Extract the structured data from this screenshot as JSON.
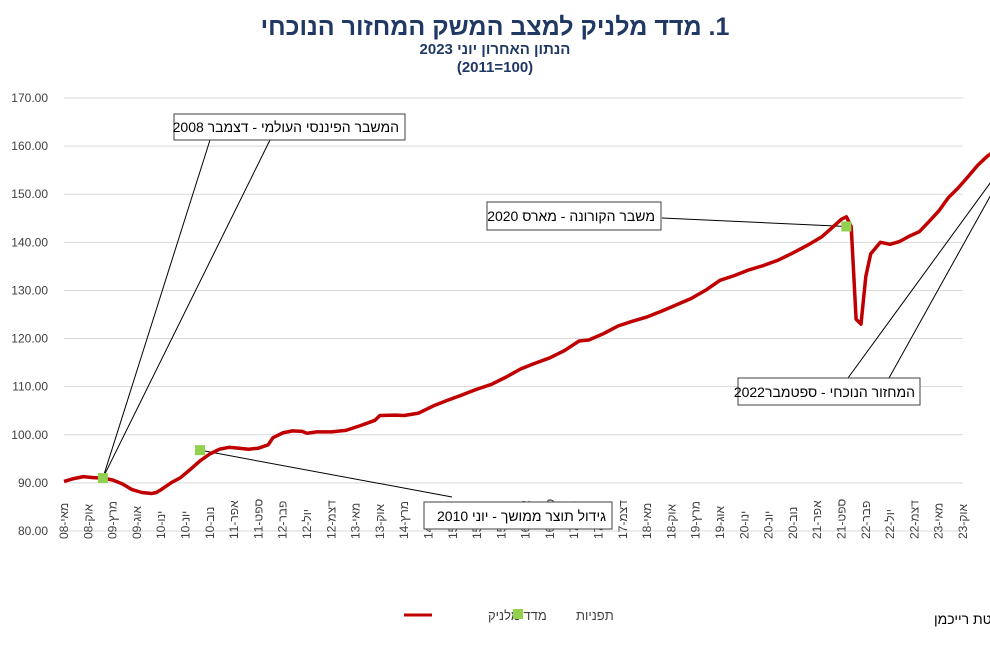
{
  "chart_data": {
    "type": "line",
    "title": "1. מדד מלניק למצב המשק המחזור הנוכחי",
    "subtitle1": "הנתון האחרון יוני 2023",
    "subtitle2": "(100=2011)",
    "ylim": [
      80,
      170
    ],
    "yticks": [
      "80.00",
      "90.00",
      "100.00",
      "110.00",
      "120.00",
      "130.00",
      "140.00",
      "150.00",
      "160.00",
      "170.00"
    ],
    "xtick_labels": [
      "מאי-08",
      "אוק-08",
      "מרץ-09",
      "אוג-09",
      "ינו-10",
      "יונ-10",
      "נוב-10",
      "אפר-11",
      "ספט-11",
      "פבר-12",
      "יול-12",
      "דצמ-12",
      "מאי-13",
      "אוק-13",
      "מרץ-14",
      "אוג-14",
      "ינו-15",
      "יונ-15",
      "נוב-15",
      "אפר-16",
      "ספט-16",
      "פבר-17",
      "יול-17",
      "דצמ-17",
      "מאי-18",
      "אוק-18",
      "מרץ-19",
      "אוג-19",
      "ינו-20",
      "יונ-20",
      "נוב-20",
      "אפר-21",
      "ספט-21",
      "פבר-22",
      "יול-22",
      "דצמ-22",
      "מאי-23",
      "אוק-23"
    ],
    "series": [
      {
        "name": "מדד מלניק",
        "color": "#c00000",
        "points": [
          [
            0,
            90.3
          ],
          [
            2,
            90.9
          ],
          [
            4,
            91.3
          ],
          [
            6,
            91.1
          ],
          [
            8,
            91.0
          ],
          [
            10,
            90.6
          ],
          [
            12,
            89.8
          ],
          [
            14,
            88.6
          ],
          [
            16,
            88.0
          ],
          [
            18,
            87.8
          ],
          [
            19,
            88.0
          ],
          [
            20,
            88.6
          ],
          [
            22,
            90.0
          ],
          [
            24,
            91.1
          ],
          [
            26,
            92.8
          ],
          [
            28,
            94.6
          ],
          [
            30,
            96.0
          ],
          [
            32,
            97.0
          ],
          [
            34,
            97.4
          ],
          [
            36,
            97.2
          ],
          [
            38,
            97.0
          ],
          [
            40,
            97.2
          ],
          [
            42,
            97.9
          ],
          [
            43,
            99.4
          ],
          [
            45,
            100.4
          ],
          [
            47,
            100.8
          ],
          [
            49,
            100.7
          ],
          [
            50,
            100.3
          ],
          [
            52,
            100.6
          ],
          [
            55,
            100.6
          ],
          [
            58,
            100.9
          ],
          [
            61,
            101.9
          ],
          [
            64,
            103.0
          ],
          [
            65,
            104.0
          ],
          [
            68,
            104.1
          ],
          [
            70,
            104.0
          ],
          [
            73,
            104.5
          ],
          [
            76,
            106.0
          ],
          [
            79,
            107.2
          ],
          [
            82,
            108.3
          ],
          [
            85,
            109.5
          ],
          [
            88,
            110.5
          ],
          [
            91,
            112.0
          ],
          [
            94,
            113.7
          ],
          [
            97,
            114.9
          ],
          [
            100,
            116.0
          ],
          [
            103,
            117.5
          ],
          [
            106,
            119.5
          ],
          [
            108,
            119.7
          ],
          [
            111,
            121.0
          ],
          [
            114,
            122.6
          ],
          [
            117,
            123.6
          ],
          [
            120,
            124.5
          ],
          [
            123,
            125.7
          ],
          [
            126,
            127.0
          ],
          [
            129,
            128.3
          ],
          [
            132,
            130.0
          ],
          [
            135,
            132.1
          ],
          [
            138,
            133.1
          ],
          [
            141,
            134.3
          ],
          [
            144,
            135.2
          ],
          [
            147,
            136.3
          ],
          [
            150,
            137.8
          ],
          [
            153,
            139.4
          ],
          [
            156,
            141.2
          ],
          [
            158,
            143.0
          ],
          [
            160,
            144.8
          ],
          [
            161,
            145.3
          ],
          [
            162,
            143.3
          ],
          [
            163,
            124.0
          ],
          [
            164,
            123.0
          ],
          [
            165,
            132.9
          ],
          [
            166,
            137.6
          ],
          [
            168,
            140.0
          ],
          [
            170,
            139.6
          ],
          [
            172,
            140.2
          ],
          [
            174,
            141.3
          ],
          [
            176,
            142.2
          ],
          [
            178,
            144.3
          ],
          [
            180,
            146.5
          ],
          [
            182,
            149.3
          ],
          [
            184,
            151.3
          ],
          [
            186,
            153.6
          ],
          [
            188,
            156.0
          ],
          [
            190,
            157.9
          ],
          [
            192,
            159.3
          ],
          [
            194,
            160.3
          ],
          [
            196,
            161.0
          ],
          [
            198,
            162.0
          ],
          [
            200,
            162.6
          ],
          [
            202,
            163.3
          ],
          [
            204,
            163.7
          ],
          [
            206,
            163.6
          ]
        ]
      },
      {
        "name": "תפניות",
        "color": "#92d050",
        "points": [
          [
            8,
            91.0
          ],
          [
            28,
            96.8
          ],
          [
            161,
            143.3
          ],
          [
            197,
            161.2
          ]
        ]
      }
    ],
    "annotations": [
      {
        "text": "המשבר הפיננסי העולמי - דצמבר 2008"
      },
      {
        "text": "גידול תוצר ממושך - יוני 2010"
      },
      {
        "text": "משבר הקורונה - מארס 2020"
      },
      {
        "text": "המחזור הנוכחי - ספטמבר2022"
      }
    ],
    "legend": [
      "מדד מלניק",
      "תפניות"
    ],
    "grid": true,
    "legend_position": "bottom"
  },
  "footer": {
    "credit": "פרופ' רפי מלניק, אוניברסיטת רייכמן"
  }
}
